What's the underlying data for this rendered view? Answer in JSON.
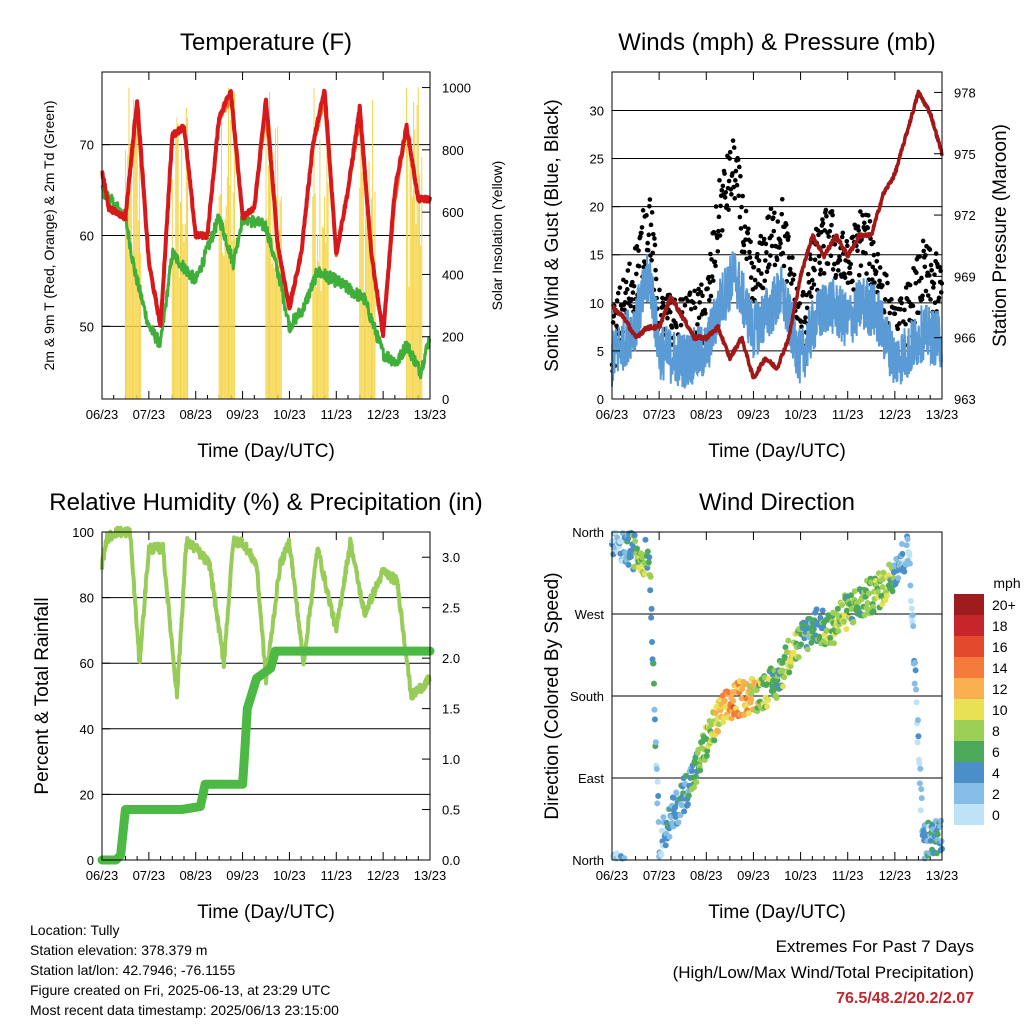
{
  "panels": {
    "temperature": {
      "title": "Temperature (F)",
      "ylabel_left": "2m & 9m T (Red, Orange) & 2m Td (Green)",
      "ylabel_right": "Solar Insolation (Yellow)",
      "xlabel": "Time (Day/UTC)"
    },
    "winds": {
      "title": "Winds (mph) & Pressure (mb)",
      "ylabel_left": "Sonic Wind & Gust (Blue, Black)",
      "ylabel_right": "Station Pressure (Maroon)",
      "xlabel": "Time (Day/UTC)"
    },
    "humidity": {
      "title": "Relative Humidity (%) & Precipitation (in)",
      "ylabel_left": "Percent & Total Rainfall",
      "xlabel": "Time (Day/UTC)"
    },
    "direction": {
      "title": "Wind Direction",
      "ylabel_left": "Direction (Colored By Speed)",
      "xlabel": "Time (Day/UTC)",
      "legend_title": "mph"
    }
  },
  "station": {
    "location": "Location: Tully",
    "elevation": "Station elevation: 378.379 m",
    "latlon": "Station lat/lon: 42.7946; -76.1155",
    "created": "Figure created on Fri, 2025-06-13, at 23:29 UTC",
    "recent": "Most recent data timestamp: 2025/06/13 23:15:00"
  },
  "extremes": {
    "title": "Extremes For Past 7 Days",
    "subtitle": "(High/Low/Max Wind/Total Precipitation)",
    "values": "76.5/48.2/20.2/2.07"
  },
  "colors": {
    "temp2m": "#d7191c",
    "temp9m": "#f07a2a",
    "dewpoint": "#3fae3a",
    "solar": "#f5d547",
    "wind": "#5b9bd5",
    "gust": "#000000",
    "pressure": "#a01818",
    "rh": "#98cc58",
    "precip": "#4cb944"
  },
  "chart_data": [
    {
      "type": "line",
      "panel": "temperature",
      "x_ticks": [
        "06/23",
        "07/23",
        "08/23",
        "09/23",
        "10/23",
        "11/23",
        "12/23",
        "13/23"
      ],
      "x_range": [
        0,
        7
      ],
      "ylim_left": [
        42,
        78
      ],
      "y_ticks_left": [
        50,
        60,
        70
      ],
      "ylim_right": [
        0,
        1050
      ],
      "y_ticks_right": [
        0,
        200,
        400,
        600,
        800,
        1000
      ],
      "series": [
        {
          "axis": "left",
          "x": [
            0,
            0.15,
            0.5,
            0.75,
            1.0,
            1.25,
            1.5,
            1.75,
            2.0,
            2.25,
            2.5,
            2.75,
            3.0,
            3.25,
            3.5,
            3.75,
            4.0,
            4.25,
            4.5,
            4.75,
            5.0,
            5.25,
            5.5,
            5.75,
            6.0,
            6.25,
            6.5,
            6.75,
            7.0
          ],
          "values": [
            67,
            63,
            62,
            75,
            57,
            50,
            71,
            72,
            60,
            60,
            73,
            76,
            62,
            63,
            75,
            59,
            52,
            58,
            70,
            76,
            58,
            65,
            74,
            58,
            49,
            65,
            72,
            64,
            64
          ]
        },
        {
          "axis": "left",
          "x": [
            0,
            0.15,
            0.5,
            0.75,
            1.0,
            1.25,
            1.5,
            1.75,
            2.0,
            2.25,
            2.5,
            2.75,
            3.0,
            3.25,
            3.5,
            3.75,
            4.0,
            4.25,
            4.5,
            4.75,
            5.0,
            5.25,
            5.5,
            5.75,
            6.0,
            6.25,
            6.5,
            6.75,
            7.0
          ],
          "values": [
            67,
            63,
            62,
            74,
            57,
            50,
            71,
            72,
            60,
            60,
            73,
            75,
            62,
            63,
            74,
            59,
            52,
            58,
            70,
            75,
            58,
            65,
            73,
            58,
            49,
            64,
            72,
            64,
            64
          ]
        },
        {
          "axis": "left",
          "x": [
            0,
            0.5,
            0.7,
            1.0,
            1.25,
            1.5,
            2.0,
            2.5,
            2.8,
            3.0,
            3.5,
            3.8,
            4.0,
            4.3,
            4.6,
            5.0,
            5.3,
            5.6,
            6.0,
            6.3,
            6.5,
            6.8,
            7.0
          ],
          "values": [
            65,
            62,
            56,
            50,
            48,
            58,
            55,
            62,
            57,
            62,
            61,
            55,
            50,
            52,
            56,
            55,
            54,
            53,
            47,
            46,
            48,
            45,
            49
          ]
        },
        {
          "axis": "right",
          "x": [
            0,
            0.35,
            0.55,
            0.75,
            1.0,
            1.35,
            1.55,
            1.75,
            2.0,
            2.35,
            2.55,
            2.75,
            3.0,
            3.35,
            3.55,
            3.75,
            4.0,
            4.35,
            4.55,
            4.75,
            5.0,
            5.35,
            5.55,
            5.75,
            6.0,
            6.35,
            6.55,
            6.75,
            7.0
          ],
          "values": [
            0,
            0,
            500,
            950,
            0,
            0,
            600,
            900,
            0,
            0,
            550,
            980,
            0,
            0,
            650,
            1000,
            0,
            0,
            600,
            980,
            0,
            0,
            500,
            900,
            0,
            0,
            700,
            1000,
            0
          ]
        }
      ]
    },
    {
      "type": "scatter",
      "panel": "winds",
      "x_ticks": [
        "06/23",
        "07/23",
        "08/23",
        "09/23",
        "10/23",
        "11/23",
        "12/23",
        "13/23"
      ],
      "x_range": [
        0,
        7
      ],
      "ylim_left": [
        0,
        34
      ],
      "y_ticks_left": [
        0,
        5,
        10,
        15,
        20,
        25,
        30
      ],
      "ylim_right": [
        963,
        979
      ],
      "y_ticks_right": [
        963,
        966,
        969,
        972,
        975,
        978
      ],
      "series": [
        {
          "axis": "left",
          "x": [
            0,
            0.5,
            0.8,
            1.0,
            1.5,
            2.0,
            2.3,
            2.6,
            3.0,
            3.3,
            3.6,
            4.0,
            4.3,
            4.6,
            5.0,
            5.3,
            5.6,
            6.0,
            6.3,
            6.6,
            7.0
          ],
          "values": [
            4,
            8,
            13,
            5,
            4,
            5,
            10,
            13,
            7,
            9,
            11,
            4,
            8,
            10,
            8,
            10,
            9,
            4,
            5,
            7,
            6
          ]
        },
        {
          "axis": "left",
          "x": [
            0,
            0.5,
            0.8,
            1.0,
            1.5,
            2.0,
            2.3,
            2.6,
            3.0,
            3.3,
            3.6,
            4.0,
            4.3,
            4.6,
            5.0,
            5.3,
            5.6,
            6.0,
            6.3,
            6.6,
            7.0
          ],
          "values": [
            6,
            13,
            19,
            8,
            7,
            9,
            20,
            24,
            11,
            16,
            18,
            7,
            14,
            17,
            13,
            17,
            14,
            6,
            9,
            13,
            11
          ]
        },
        {
          "axis": "right",
          "x": [
            0,
            0.25,
            0.5,
            0.75,
            1.0,
            1.25,
            1.5,
            1.75,
            2.0,
            2.25,
            2.5,
            2.75,
            3.0,
            3.25,
            3.5,
            3.75,
            4.0,
            4.25,
            4.5,
            4.75,
            5.0,
            5.25,
            5.5,
            5.75,
            6.0,
            6.25,
            6.5,
            6.75,
            7.0
          ],
          "values": [
            967.5,
            967,
            966,
            966.5,
            966.5,
            968,
            967,
            966,
            966,
            966.5,
            965,
            966,
            964,
            965,
            964.5,
            966,
            969,
            971,
            970,
            971,
            970,
            971,
            971,
            973,
            974,
            976,
            978,
            977,
            975
          ]
        }
      ]
    },
    {
      "type": "line",
      "panel": "humidity",
      "x_ticks": [
        "06/23",
        "07/23",
        "08/23",
        "09/23",
        "10/23",
        "11/23",
        "12/23",
        "13/23"
      ],
      "x_range": [
        0,
        7
      ],
      "ylim_left": [
        0,
        100
      ],
      "y_ticks_left": [
        0,
        20,
        40,
        60,
        80,
        100
      ],
      "ylim_right": [
        0,
        3.25
      ],
      "y_ticks_right": [
        "0.0",
        "0.5",
        "1.0",
        "1.5",
        "2.0",
        "2.5",
        "3.0"
      ],
      "series": [
        {
          "axis": "left",
          "x": [
            0,
            0.1,
            0.3,
            0.6,
            0.8,
            1.0,
            1.3,
            1.6,
            1.8,
            2.0,
            2.3,
            2.6,
            2.8,
            3.0,
            3.3,
            3.5,
            3.8,
            4.0,
            4.3,
            4.6,
            5.0,
            5.3,
            5.6,
            6.0,
            6.3,
            6.6,
            7.0
          ],
          "values": [
            90,
            98,
            100,
            100,
            60,
            95,
            95,
            50,
            97,
            95,
            90,
            60,
            97,
            97,
            90,
            55,
            90,
            97,
            60,
            95,
            70,
            97,
            75,
            88,
            85,
            50,
            55
          ]
        },
        {
          "axis": "right",
          "x": [
            0,
            0.3,
            0.4,
            0.5,
            0.7,
            1.0,
            1.5,
            1.7,
            2.1,
            2.2,
            2.3,
            2.7,
            3.0,
            3.05,
            3.1,
            3.3,
            3.6,
            3.7,
            4.0,
            5.0,
            6.0,
            7.0
          ],
          "values": [
            0,
            0,
            0.05,
            0.5,
            0.5,
            0.5,
            0.5,
            0.5,
            0.53,
            0.75,
            0.75,
            0.75,
            0.75,
            1.1,
            1.5,
            1.8,
            1.9,
            2.07,
            2.07,
            2.07,
            2.07,
            2.07
          ]
        }
      ]
    },
    {
      "type": "scatter",
      "panel": "direction",
      "x_ticks": [
        "06/23",
        "07/23",
        "08/23",
        "09/23",
        "10/23",
        "11/23",
        "12/23",
        "13/23"
      ],
      "x_range": [
        0,
        7
      ],
      "y_ticks_left": [
        "North",
        "East",
        "South",
        "West",
        "North"
      ],
      "ylim_left": [
        0,
        360
      ],
      "legend": [
        "20+",
        "18",
        "16",
        "14",
        "12",
        "10",
        "8",
        "6",
        "4",
        "2",
        "0"
      ],
      "legend_colors": [
        "#9e1b1e",
        "#c6252a",
        "#e34a2b",
        "#f47b3b",
        "#f9ae4f",
        "#e9e155",
        "#9ccf56",
        "#4ca95a",
        "#4a8fc8",
        "#86bde6",
        "#bfe3f6"
      ],
      "series": [
        {
          "x": [
            0,
            0.2,
            0.4,
            0.6,
            0.8,
            1.0,
            1.2,
            1.5,
            1.8,
            2.0,
            2.3,
            2.6,
            2.9,
            3.2,
            3.5,
            3.8,
            4.0,
            4.3,
            4.6,
            4.9,
            5.2,
            5.5,
            5.8,
            6.0,
            6.3,
            6.6,
            7.0
          ],
          "values": [
            350,
            345,
            340,
            335,
            330,
            20,
            40,
            70,
            100,
            130,
            160,
            175,
            180,
            185,
            195,
            230,
            240,
            260,
            250,
            270,
            280,
            290,
            300,
            320,
            340,
            20,
            30
          ],
          "speed": [
            3,
            3,
            6,
            9,
            7,
            3,
            4,
            5,
            7,
            8,
            12,
            14,
            12,
            9,
            7,
            10,
            7,
            5,
            9,
            9,
            7,
            8,
            10,
            6,
            2,
            4,
            5
          ]
        }
      ]
    }
  ]
}
